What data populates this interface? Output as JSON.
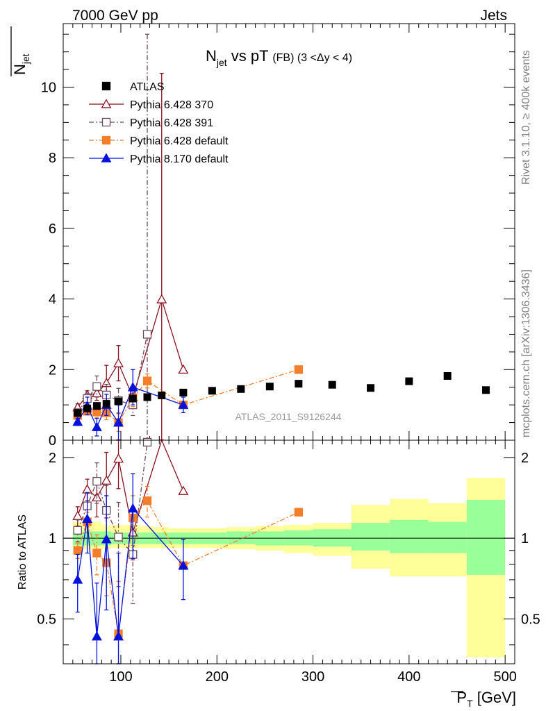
{
  "header": {
    "left": "7000 GeV pp",
    "right": "Jets"
  },
  "side_labels": {
    "rivet": "Rivet 3.1.10, ≥ 400k events",
    "mcplots": "mcplots.cern.ch [arXiv:1306.3436]"
  },
  "chart_data": {
    "type": "scatter",
    "title": {
      "main": "N",
      "sub": "jet",
      "rest": " vs pT ",
      "small": "(FB) (3 <Δy < 4)"
    },
    "watermark": "ATLAS_2011_S9126244",
    "ylabel_top": {
      "main": "N",
      "sub": "jet"
    },
    "ylabel_bottom": "Ratio to ATLAS",
    "xlabel": {
      "main": "P",
      "sub": "T",
      "unit": " [GeV]"
    },
    "xlim": [
      40,
      510
    ],
    "ylim_top": [
      0,
      11.8
    ],
    "ylim_bottom": [
      0.34,
      2.32
    ],
    "x_ticks": [
      100,
      200,
      300,
      400,
      500
    ],
    "y_ticks_top": [
      0,
      2,
      4,
      6,
      8,
      10
    ],
    "y_ticks_bottom": [
      0.5,
      1,
      2
    ],
    "colors": {
      "data": "#000000",
      "p370": "#8b0f1e",
      "p391": "#6b4a5c",
      "p6def": "#f47e29",
      "p8": "#0011dd",
      "yellow": "#ffff99",
      "green": "#99ff99"
    },
    "legend": [
      "ATLAS",
      "Pythia 6.428 370",
      "Pythia 6.428 391",
      "Pythia 6.428 default",
      "Pythia 8.170 default"
    ],
    "atlas": {
      "x": [
        55,
        65,
        75,
        85,
        97.5,
        112.5,
        127.5,
        142.5,
        165,
        195,
        225,
        255,
        285,
        320,
        360,
        400,
        440,
        480
      ],
      "y": [
        0.77,
        0.9,
        0.97,
        1.03,
        1.1,
        1.18,
        1.22,
        1.27,
        1.35,
        1.4,
        1.45,
        1.52,
        1.6,
        1.57,
        1.48,
        1.67,
        1.82,
        1.42
      ],
      "band_edges": [
        50,
        60,
        70,
        80,
        90,
        105,
        120,
        135,
        150,
        180,
        210,
        240,
        270,
        300,
        340,
        380,
        420,
        460,
        500
      ],
      "green": [
        [
          0.94,
          1.06
        ],
        [
          0.94,
          1.06
        ],
        [
          0.94,
          1.06
        ],
        [
          0.94,
          1.06
        ],
        [
          0.95,
          1.05
        ],
        [
          0.95,
          1.05
        ],
        [
          0.95,
          1.05
        ],
        [
          0.95,
          1.05
        ],
        [
          0.95,
          1.05
        ],
        [
          0.95,
          1.05
        ],
        [
          0.95,
          1.06
        ],
        [
          0.94,
          1.06
        ],
        [
          0.94,
          1.07
        ],
        [
          0.93,
          1.08
        ],
        [
          0.9,
          1.14
        ],
        [
          0.88,
          1.17
        ],
        [
          0.88,
          1.15
        ],
        [
          0.73,
          1.39
        ]
      ],
      "yellow": [
        [
          0.91,
          1.15
        ],
        [
          0.91,
          1.15
        ],
        [
          0.91,
          1.15
        ],
        [
          0.91,
          1.12
        ],
        [
          0.92,
          1.12
        ],
        [
          0.92,
          1.12
        ],
        [
          0.92,
          1.11
        ],
        [
          0.92,
          1.1
        ],
        [
          0.92,
          1.09
        ],
        [
          0.92,
          1.09
        ],
        [
          0.91,
          1.1
        ],
        [
          0.9,
          1.11
        ],
        [
          0.88,
          1.12
        ],
        [
          0.86,
          1.14
        ],
        [
          0.77,
          1.33
        ],
        [
          0.72,
          1.4
        ],
        [
          0.72,
          1.35
        ],
        [
          0.36,
          1.68
        ]
      ]
    },
    "series": [
      {
        "name": "Pythia 6.428 370",
        "key": "p370",
        "marker": "triangle-open",
        "dash": "",
        "x": [
          55,
          65,
          75,
          85,
          97.5,
          112.5,
          142.5,
          165
        ],
        "y": [
          0.93,
          1.28,
          1.33,
          1.62,
          2.18,
          1.22,
          3.99,
          2.0
        ],
        "err": [
          0.1,
          0.12,
          0.2,
          0.5,
          0.5,
          0.25,
          6.4,
          0.0
        ],
        "ratio": [
          1.21,
          1.52,
          1.42,
          1.64,
          1.98,
          1.05,
          3.1,
          1.5
        ],
        "rerr": [
          0.1,
          0.14,
          0.22,
          0.45,
          0.45,
          0.22,
          0.0,
          0.0
        ]
      },
      {
        "name": "Pythia 6.428 391",
        "key": "p391",
        "marker": "square-open",
        "dash": "7,3,2,3",
        "x": [
          55,
          65,
          75,
          85,
          97.5,
          112.5,
          127.5
        ],
        "y": [
          0.78,
          1.18,
          1.52,
          1.28,
          1.12,
          1.0,
          3.0
        ],
        "err": [
          0.08,
          0.15,
          0.3,
          0.3,
          0.35,
          0.3,
          8.5
        ],
        "ratio": [
          1.07,
          1.32,
          1.63,
          1.27,
          1.01,
          0.87,
          2.28
        ],
        "rerr": [
          0.1,
          0.15,
          0.28,
          0.3,
          0.35,
          0.3,
          0.0
        ]
      },
      {
        "name": "Pythia 6.428 default",
        "key": "p6def",
        "marker": "square-filled",
        "dash": "7,3,2,3",
        "x": [
          55,
          65,
          75,
          85,
          97.5,
          112.5,
          127.5,
          165,
          285
        ],
        "y": [
          0.7,
          0.82,
          0.8,
          0.78,
          0.5,
          1.2,
          1.68,
          1.0,
          2.0
        ],
        "err": [
          0.06,
          0.1,
          0.15,
          0.2,
          0.25,
          0.25,
          0.2,
          0.0,
          0.0
        ],
        "ratio": [
          0.9,
          1.15,
          0.88,
          0.81,
          0.44,
          1.19,
          1.38,
          0.79,
          1.25
        ],
        "rerr": [
          0.06,
          0.1,
          0.15,
          0.2,
          0.25,
          0.25,
          0.18,
          0.0,
          0.0
        ]
      },
      {
        "name": "Pythia 8.170 default",
        "key": "p8",
        "marker": "triangle-filled",
        "dash": "",
        "x": [
          55,
          65,
          75,
          85,
          97.5,
          112.5,
          165
        ],
        "y": [
          0.52,
          0.97,
          0.37,
          1.0,
          0.5,
          1.5,
          1.0
        ],
        "err": [
          0.1,
          0.25,
          0.25,
          0.3,
          0.5,
          0.5,
          0.22
        ],
        "ratio": [
          0.7,
          1.18,
          0.43,
          0.99,
          0.43,
          1.29,
          0.79
        ],
        "rerr": [
          0.17,
          0.3,
          0.25,
          0.45,
          0.45,
          0.45,
          0.2
        ]
      }
    ]
  }
}
